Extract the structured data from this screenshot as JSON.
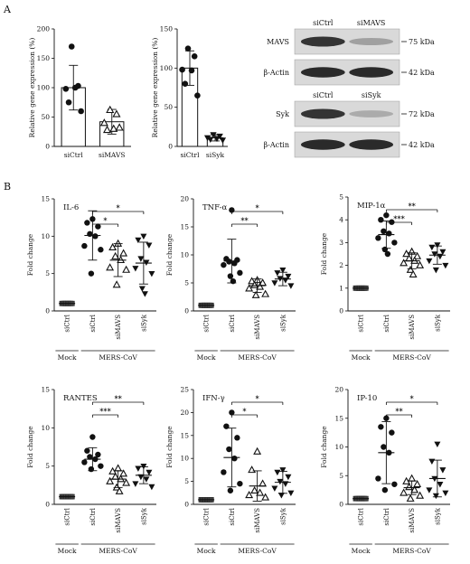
{
  "panel_labels": {
    "A": "A",
    "B": "B"
  },
  "chart_data": [
    {
      "id": "knockdown-mavs",
      "type": "bar",
      "categories": [
        "siCtrl",
        "siMAVS"
      ],
      "values": [
        100,
        42
      ],
      "error": [
        38,
        21
      ],
      "points": [
        [
          170,
          103,
          98,
          100,
          75,
          60
        ],
        [
          62,
          55,
          40,
          30,
          28,
          32
        ]
      ],
      "ylabel": "Relative gene expression (%)",
      "ylim": [
        0,
        200
      ],
      "yticks": [
        0,
        50,
        100,
        150,
        200
      ]
    },
    {
      "id": "knockdown-syk",
      "type": "bar",
      "categories": [
        "siCtrl",
        "siSyk"
      ],
      "values": [
        100,
        11
      ],
      "error": [
        22,
        4
      ],
      "points": [
        [
          125,
          115,
          98,
          97,
          80,
          65
        ],
        [
          15,
          13,
          11,
          10,
          9,
          8
        ]
      ],
      "ylabel": "Relative gene expression (%)",
      "ylim": [
        0,
        150
      ],
      "yticks": [
        0,
        50,
        100,
        150
      ]
    },
    {
      "id": "il6",
      "type": "scatter",
      "title": "IL-6",
      "ylabel": "Fold change",
      "ylim": [
        0,
        15
      ],
      "yticks": [
        0,
        5,
        10,
        15
      ],
      "categories": [
        "siCtrl",
        "siCtrl",
        "siMAVS",
        "siSyk"
      ],
      "groups": [
        {
          "label": "Mock",
          "span": [
            0,
            0
          ]
        },
        {
          "label": "MERS-CoV",
          "span": [
            1,
            3
          ]
        }
      ],
      "series": [
        {
          "marker": "square",
          "mean": 1,
          "sd": 0,
          "points": [
            1,
            1,
            1,
            1,
            1,
            1,
            1,
            1
          ]
        },
        {
          "marker": "circle",
          "mean": 10.1,
          "sd": 3.3,
          "points": [
            12.3,
            11.8,
            11.3,
            10.3,
            10,
            8.7,
            8.2,
            5
          ]
        },
        {
          "marker": "triangle-up",
          "mean": 6.8,
          "sd": 2.2,
          "points": [
            9,
            8.5,
            7.7,
            7.3,
            6.8,
            5.8,
            5.5,
            3.5
          ]
        },
        {
          "marker": "triangle-down",
          "mean": 6.4,
          "sd": 2.8,
          "points": [
            10,
            9.5,
            8.8,
            7,
            6.5,
            5.7,
            5,
            3,
            2.3
          ]
        }
      ],
      "significance": [
        {
          "from": 1,
          "to": 2,
          "label": "*"
        },
        {
          "from": 1,
          "to": 3,
          "label": "*"
        }
      ]
    },
    {
      "id": "tnfa",
      "type": "scatter",
      "title": "TNF-α",
      "ylabel": "Fold change",
      "ylim": [
        0,
        20
      ],
      "yticks": [
        0,
        5,
        10,
        15,
        20
      ],
      "categories": [
        "siCtrl",
        "siCtrl",
        "siMAVS",
        "siSyk"
      ],
      "groups": [
        {
          "label": "Mock",
          "span": [
            0,
            0
          ]
        },
        {
          "label": "MERS-CoV",
          "span": [
            1,
            3
          ]
        }
      ],
      "series": [
        {
          "marker": "square",
          "mean": 1,
          "sd": 0,
          "points": [
            1,
            1,
            1,
            1,
            1,
            1,
            1,
            1
          ]
        },
        {
          "marker": "circle",
          "mean": 8.9,
          "sd": 3.9,
          "points": [
            18,
            9.3,
            9.1,
            8.8,
            8.5,
            8.2,
            6.8,
            6.2,
            5.3
          ]
        },
        {
          "marker": "triangle-up",
          "mean": 4.5,
          "sd": 1.2,
          "points": [
            5.5,
            5.3,
            5,
            4.6,
            4.3,
            4,
            3,
            2.8
          ]
        },
        {
          "marker": "triangle-down",
          "mean": 5.7,
          "sd": 1.2,
          "points": [
            7.3,
            6.8,
            6.2,
            5.8,
            5.5,
            5,
            4.5
          ]
        }
      ],
      "significance": [
        {
          "from": 1,
          "to": 2,
          "label": "**"
        },
        {
          "from": 1,
          "to": 3,
          "label": "*"
        }
      ]
    },
    {
      "id": "mip1a",
      "type": "scatter",
      "title": "MIP-1α",
      "ylabel": "Fold change",
      "ylim": [
        0,
        5
      ],
      "yticks": [
        0,
        1,
        2,
        3,
        4,
        5
      ],
      "categories": [
        "siCtrl",
        "siCtrl",
        "siMAVS",
        "siSyk"
      ],
      "groups": [
        {
          "label": "Mock",
          "span": [
            0,
            0
          ]
        },
        {
          "label": "MERS-CoV",
          "span": [
            1,
            3
          ]
        }
      ],
      "series": [
        {
          "marker": "square",
          "mean": 1,
          "sd": 0,
          "points": [
            1,
            1,
            1,
            1,
            1,
            1,
            1,
            1
          ]
        },
        {
          "marker": "circle",
          "mean": 3.35,
          "sd": 0.6,
          "points": [
            4.2,
            4,
            3.9,
            3.5,
            3.4,
            3.2,
            3,
            2.7,
            2.5
          ]
        },
        {
          "marker": "triangle-up",
          "mean": 2.2,
          "sd": 0.35,
          "points": [
            2.6,
            2.5,
            2.4,
            2.3,
            2.2,
            2.1,
            2,
            1.8,
            1.6
          ]
        },
        {
          "marker": "triangle-down",
          "mean": 2.45,
          "sd": 0.4,
          "points": [
            2.9,
            2.8,
            2.6,
            2.5,
            2.4,
            2.2,
            2,
            1.8
          ]
        }
      ],
      "significance": [
        {
          "from": 1,
          "to": 2,
          "label": "***"
        },
        {
          "from": 1,
          "to": 3,
          "label": "**"
        }
      ]
    },
    {
      "id": "rantes",
      "type": "scatter",
      "title": "RANTES",
      "ylabel": "Fold change",
      "ylim": [
        0,
        15
      ],
      "yticks": [
        0,
        5,
        10,
        15
      ],
      "categories": [
        "siCtrl",
        "siCtrl",
        "siMAVS",
        "siSyk"
      ],
      "groups": [
        {
          "label": "Mock",
          "span": [
            0,
            0
          ]
        },
        {
          "label": "MERS-CoV",
          "span": [
            1,
            3
          ]
        }
      ],
      "series": [
        {
          "marker": "square",
          "mean": 1,
          "sd": 0,
          "points": [
            1,
            1,
            1,
            1,
            1,
            1,
            1,
            1
          ]
        },
        {
          "marker": "circle",
          "mean": 5.9,
          "sd": 1.5,
          "points": [
            8.8,
            7,
            6.5,
            6.2,
            5.9,
            5.5,
            5,
            4.6
          ]
        },
        {
          "marker": "triangle-up",
          "mean": 3.3,
          "sd": 1.1,
          "points": [
            4.7,
            4.3,
            4,
            3.6,
            3.3,
            3,
            2.8,
            2.2,
            1.7
          ]
        },
        {
          "marker": "triangle-down",
          "mean": 3.8,
          "sd": 1.1,
          "points": [
            5,
            4.7,
            4.2,
            3.6,
            3.3,
            2.7,
            2.3
          ]
        }
      ],
      "significance": [
        {
          "from": 1,
          "to": 2,
          "label": "***"
        },
        {
          "from": 1,
          "to": 3,
          "label": "**"
        }
      ]
    },
    {
      "id": "ifng",
      "type": "scatter",
      "title": "IFN-γ",
      "ylabel": "Fold change",
      "ylim": [
        0,
        25
      ],
      "yticks": [
        0,
        5,
        10,
        15,
        20,
        25
      ],
      "categories": [
        "siCtrl",
        "siCtrl",
        "siMAVS",
        "siSyk"
      ],
      "groups": [
        {
          "label": "Mock",
          "span": [
            0,
            0
          ]
        },
        {
          "label": "MERS-CoV",
          "span": [
            1,
            3
          ]
        }
      ],
      "series": [
        {
          "marker": "square",
          "mean": 1,
          "sd": 0,
          "points": [
            1,
            1,
            1,
            1,
            1,
            1,
            1,
            1
          ]
        },
        {
          "marker": "circle",
          "mean": 10.2,
          "sd": 6.4,
          "points": [
            20,
            17,
            14.5,
            12,
            10,
            7,
            4.5,
            3
          ]
        },
        {
          "marker": "triangle-up",
          "mean": 4,
          "sd": 3.3,
          "points": [
            11.5,
            7.5,
            4.5,
            3,
            2.5,
            2,
            1.5
          ]
        },
        {
          "marker": "triangle-down",
          "mean": 4.8,
          "sd": 2.4,
          "points": [
            7.5,
            7,
            6,
            5,
            4.5,
            3.5,
            2.5,
            2
          ]
        }
      ],
      "significance": [
        {
          "from": 1,
          "to": 2,
          "label": "*"
        },
        {
          "from": 1,
          "to": 3,
          "label": "*"
        }
      ]
    },
    {
      "id": "ip10",
      "type": "scatter",
      "title": "IP-10",
      "ylabel": "Fold change",
      "ylim": [
        0,
        20
      ],
      "yticks": [
        0,
        5,
        10,
        15,
        20
      ],
      "categories": [
        "siCtrl",
        "siCtrl",
        "siMAVS",
        "siSyk"
      ],
      "groups": [
        {
          "label": "Mock",
          "span": [
            0,
            0
          ]
        },
        {
          "label": "MERS-CoV",
          "span": [
            1,
            3
          ]
        }
      ],
      "series": [
        {
          "marker": "square",
          "mean": 1,
          "sd": 0,
          "points": [
            1,
            1,
            1,
            1,
            1,
            1,
            1,
            1
          ]
        },
        {
          "marker": "circle",
          "mean": 9,
          "sd": 5.4,
          "points": [
            15,
            13.5,
            12.5,
            10,
            9,
            4.5,
            3.5,
            2.5
          ]
        },
        {
          "marker": "triangle-up",
          "mean": 2.9,
          "sd": 1.2,
          "points": [
            4.5,
            4,
            3.5,
            3,
            2.5,
            2,
            1.5,
            1
          ]
        },
        {
          "marker": "triangle-down",
          "mean": 4.5,
          "sd": 3.2,
          "points": [
            10.5,
            7.5,
            6,
            4.5,
            3.5,
            2.5,
            2,
            1.5
          ]
        }
      ],
      "significance": [
        {
          "from": 1,
          "to": 2,
          "label": "**"
        },
        {
          "from": 1,
          "to": 3,
          "label": "*"
        }
      ]
    }
  ],
  "western_blots": [
    {
      "id": "mavs-blot",
      "lanes": [
        "siCtrl",
        "siMAVS"
      ],
      "rows": [
        {
          "protein": "MAVS",
          "size": "75 kDa",
          "intensities": [
            0.85,
            0.35
          ]
        },
        {
          "protein": "β-Actin",
          "size": "42 kDa",
          "intensities": [
            0.9,
            0.9
          ]
        }
      ]
    },
    {
      "id": "syk-blot",
      "lanes": [
        "siCtrl",
        "siSyk"
      ],
      "rows": [
        {
          "protein": "Syk",
          "size": "72 kDa",
          "intensities": [
            0.85,
            0.3
          ]
        },
        {
          "protein": "β-Actin",
          "size": "42 kDa",
          "intensities": [
            0.9,
            0.9
          ]
        }
      ]
    }
  ]
}
